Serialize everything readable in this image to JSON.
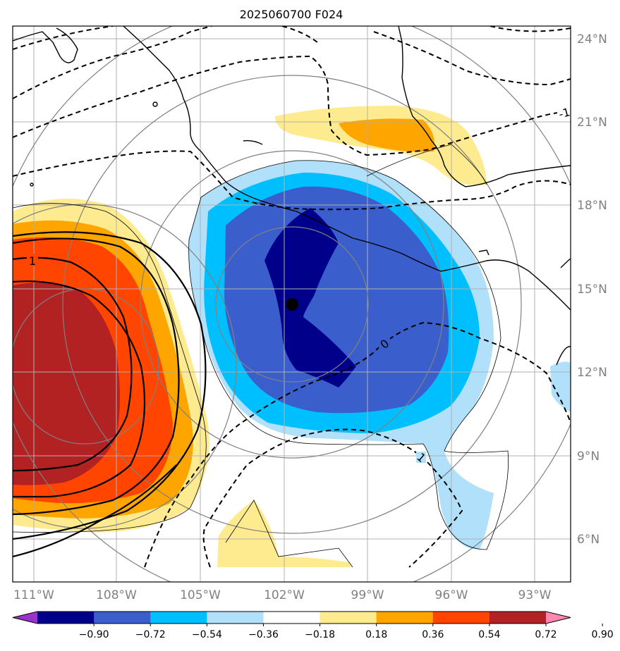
{
  "title": "2025060700 F024",
  "lon_ticks": [
    {
      "lon": -111,
      "label": "111°W"
    },
    {
      "lon": -108,
      "label": "108°W"
    },
    {
      "lon": -105,
      "label": "105°W"
    },
    {
      "lon": -102,
      "label": "102°W"
    },
    {
      "lon": -99,
      "label": "99°W"
    },
    {
      "lon": -96,
      "label": "96°W"
    },
    {
      "lon": -93,
      "label": "93°W"
    }
  ],
  "lat_ticks": [
    {
      "lat": 24,
      "label": "24°N"
    },
    {
      "lat": 21,
      "label": "21°N"
    },
    {
      "lat": 18,
      "label": "18°N"
    },
    {
      "lat": 15,
      "label": "15°N"
    },
    {
      "lat": 12,
      "label": "12°N"
    },
    {
      "lat": 9,
      "label": "9°N"
    },
    {
      "lat": 6,
      "label": "6°N"
    }
  ],
  "colorbar": {
    "labels": [
      "−0.90",
      "−0.72",
      "−0.54",
      "−0.36",
      "−0.18",
      "0.18",
      "0.36",
      "0.54",
      "0.72",
      "0.90"
    ],
    "colors": [
      "#9933cc",
      "#00008b",
      "#3a5fcd",
      "#00bfff",
      "#b0e0fa",
      "#ffffff",
      "#ffeb8f",
      "#ffa500",
      "#ff4500",
      "#b22222",
      "#ff88b0"
    ]
  },
  "contour_labels": [
    "1",
    "0",
    "1",
    "-1"
  ],
  "center_marker": {
    "lon": -101.8,
    "lat": 14.5
  },
  "colors": {
    "coast": "#000000",
    "grid": "#b0b0b0",
    "rings": "#808080",
    "axis_text": "#808080"
  }
}
